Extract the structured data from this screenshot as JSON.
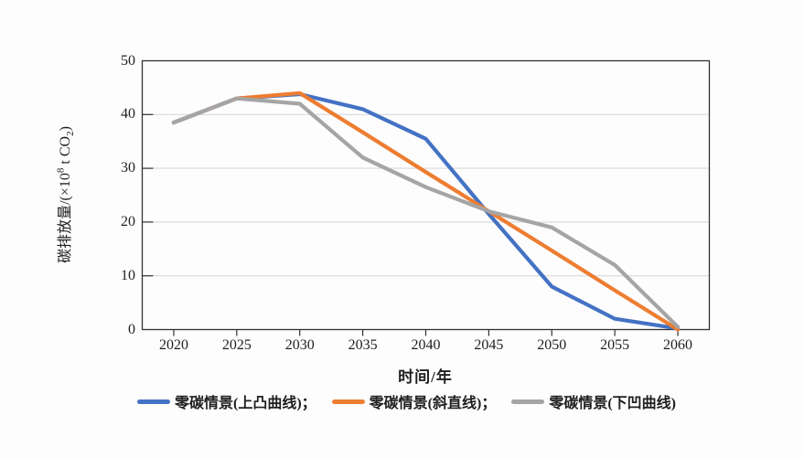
{
  "figure": {
    "background": "#fdfdfd",
    "axis_color": "#333333",
    "gridline_color": "#d9d9d9",
    "text_color": "#1f1f1f"
  },
  "x_axis": {
    "title": "时间/年"
  },
  "y_axis": {
    "title_prefix": "碳排放量/(×10",
    "title_sup": "8",
    "title_mid": " t CO",
    "title_sub": "2",
    "title_suffix": ")"
  },
  "legend": {
    "items": [
      {
        "label": "零碳情景(上凸曲线)；",
        "color": "#4472C4"
      },
      {
        "label": "零碳情景(斜直线)；",
        "color": "#ED7D31"
      },
      {
        "label": "零碳情景(下凹曲线)",
        "color": "#A5A5A5"
      }
    ]
  },
  "chart_data": {
    "type": "line",
    "title": "",
    "xlabel": "时间/年",
    "ylabel": "碳排放量/(×10⁸ t CO₂)",
    "categories": [
      "2020",
      "2025",
      "2030",
      "2035",
      "2040",
      "2045",
      "2050",
      "2055",
      "2060"
    ],
    "ylim": [
      0,
      50
    ],
    "y_ticks": [
      0,
      10,
      20,
      30,
      40,
      50
    ],
    "grid": "horizontal",
    "legend_position": "bottom",
    "series": [
      {
        "name": "零碳情景(上凸曲线)",
        "color": "#4472C4",
        "values": [
          38.5,
          43,
          43.8,
          41,
          35.5,
          21.5,
          8,
          2,
          0.2
        ]
      },
      {
        "name": "零碳情景(斜直线)",
        "color": "#ED7D31",
        "values": [
          38.5,
          43,
          44,
          36.7,
          29.3,
          22,
          14.7,
          7.3,
          0
        ]
      },
      {
        "name": "零碳情景(下凹曲线)",
        "color": "#A5A5A5",
        "values": [
          38.5,
          43,
          42,
          32,
          26.5,
          22,
          19,
          12,
          0.5
        ]
      }
    ]
  }
}
